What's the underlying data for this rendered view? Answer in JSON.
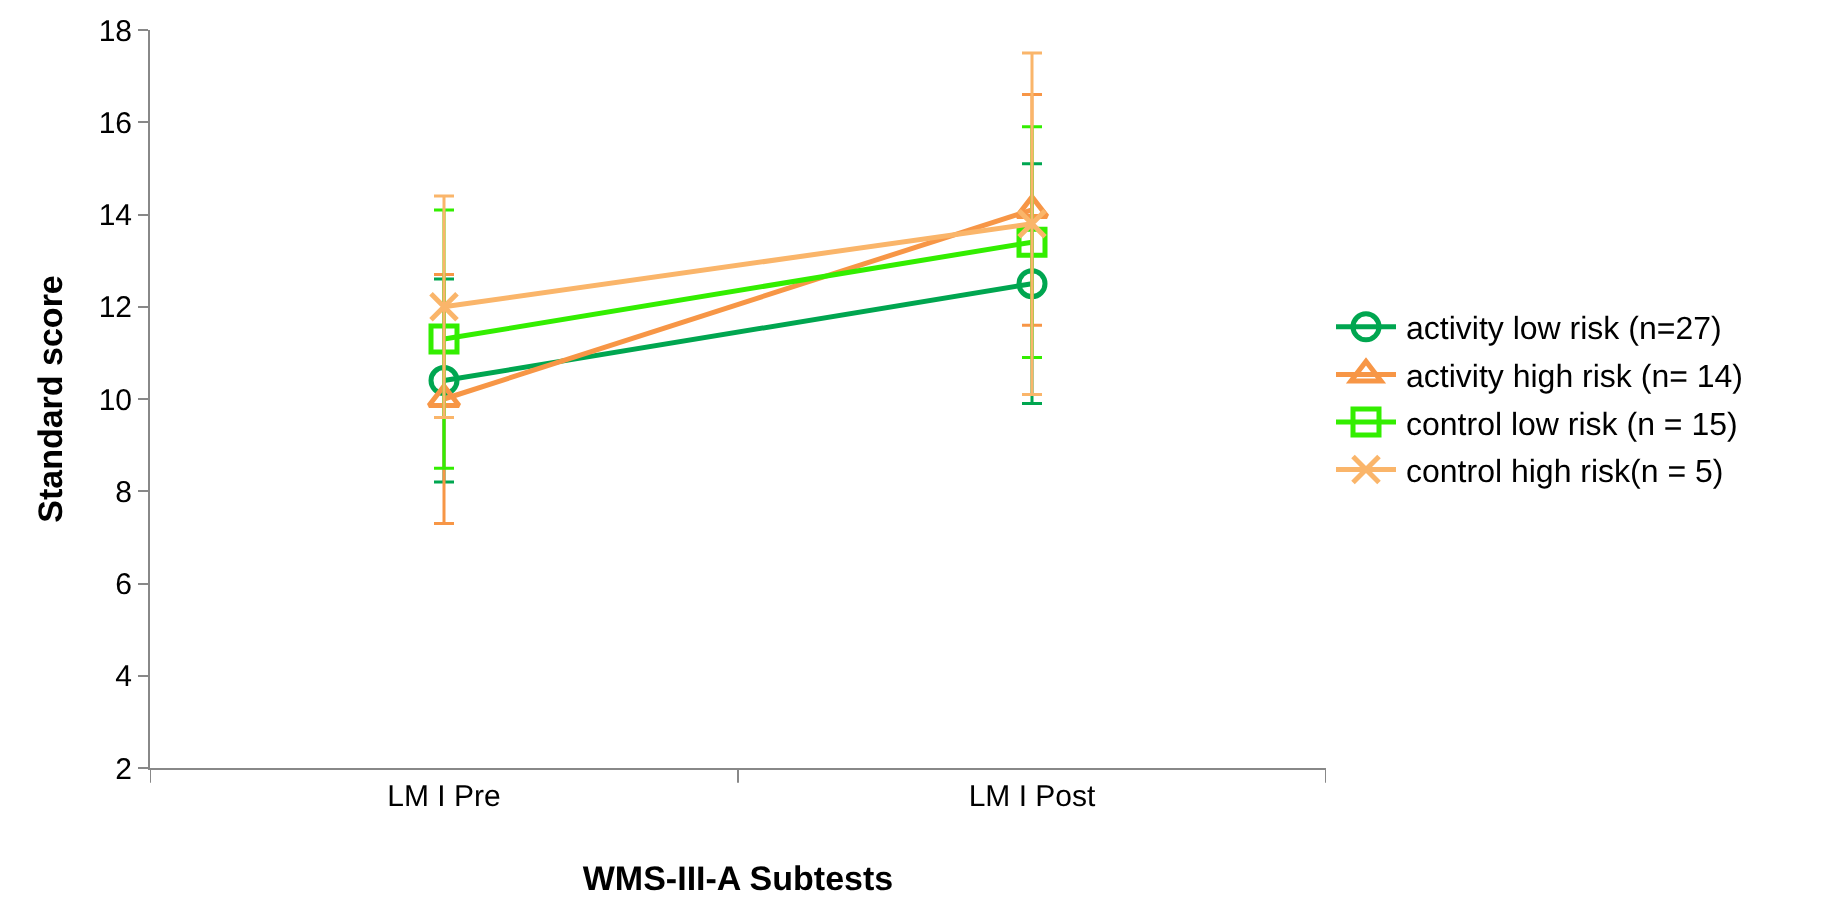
{
  "chart_data": {
    "type": "line",
    "xlabel": "WMS-III-A Subtests",
    "ylabel": "Standard score",
    "categories": [
      "LM I Pre",
      "LM I Post"
    ],
    "ylim": [
      2,
      18
    ],
    "yticks": [
      2,
      4,
      6,
      8,
      10,
      12,
      14,
      16,
      18
    ],
    "grid": false,
    "legend": "right",
    "series": [
      {
        "name": "activity low risk (n=27)",
        "color": "#00a650",
        "values": [
          10.4,
          12.5
        ],
        "errors": [
          2.2,
          2.6
        ],
        "marker": "circle"
      },
      {
        "name": "activity high risk (n= 14)",
        "color": "#f79646",
        "values": [
          10.0,
          14.1
        ],
        "errors": [
          2.7,
          2.5
        ],
        "marker": "triangle"
      },
      {
        "name": "control low risk (n = 15)",
        "color": "#33ee00",
        "values": [
          11.3,
          13.4
        ],
        "errors": [
          2.8,
          2.5
        ],
        "marker": "square"
      },
      {
        "name": "control high risk(n = 5)",
        "color": "#fab56a",
        "values": [
          12.0,
          13.8
        ],
        "errors": [
          2.4,
          3.7
        ],
        "marker": "cross"
      }
    ]
  }
}
